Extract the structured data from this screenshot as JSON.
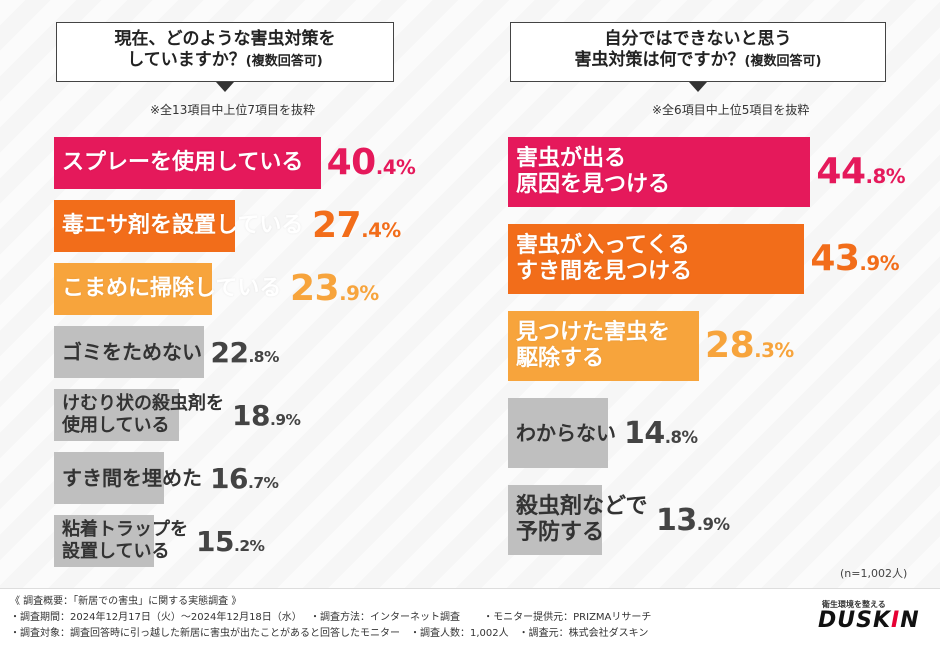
{
  "chart_data": [
    {
      "type": "bar",
      "orientation": "horizontal",
      "title_line1": "現在、どのような害虫対策を",
      "title_line2": "していますか？",
      "title_suffix": "(複数回答可)",
      "note": "※全13項目中上位7項目を抜粋",
      "unit": "%",
      "categories": [
        [
          "スプレーを使用している"
        ],
        [
          "毒エサ剤を設置している"
        ],
        [
          "こまめに掃除している"
        ],
        [
          "ゴミをためない"
        ],
        [
          "けむり状の殺虫剤を",
          "使用している"
        ],
        [
          "すき間を埋めた"
        ],
        [
          "粘着トラップを",
          "設置している"
        ]
      ],
      "values": [
        40.4,
        27.4,
        23.9,
        22.8,
        18.9,
        16.7,
        15.2
      ],
      "value_int": [
        "40",
        "27",
        "23",
        "22",
        "18",
        "16",
        "15"
      ],
      "value_dec": [
        ".4%",
        ".4%",
        ".9%",
        ".8%",
        ".9%",
        ".7%",
        ".2%"
      ],
      "colors": [
        "#e5195b",
        "#f26d1a",
        "#f7a43c",
        "#bfbfbf",
        "#bfbfbf",
        "#bfbfbf",
        "#bfbfbf"
      ],
      "text_colors": [
        "#e5195b",
        "#f26d1a",
        "#f7a43c",
        "#444444",
        "#444444",
        "#444444",
        "#444444"
      ]
    },
    {
      "type": "bar",
      "orientation": "horizontal",
      "title_line1": "自分ではできないと思う",
      "title_line2": "害虫対策は何ですか？",
      "title_suffix": "(複数回答可)",
      "note": "※全6項目中上位5項目を抜粋",
      "unit": "%",
      "categories": [
        [
          "害虫が出る",
          "原因を見つける"
        ],
        [
          "害虫が入ってくる",
          "すき間を見つける"
        ],
        [
          "見つけた害虫を",
          "駆除する"
        ],
        [
          "わからない"
        ],
        [
          "殺虫剤などで",
          "予防する"
        ]
      ],
      "values": [
        44.8,
        43.9,
        28.3,
        14.8,
        13.9
      ],
      "value_int": [
        "44",
        "43",
        "28",
        "14",
        "13"
      ],
      "value_dec": [
        ".8%",
        ".9%",
        ".3%",
        ".8%",
        ".9%"
      ],
      "colors": [
        "#e5195b",
        "#f26d1a",
        "#f7a43c",
        "#bfbfbf",
        "#bfbfbf"
      ],
      "text_colors": [
        "#e5195b",
        "#f26d1a",
        "#f7a43c",
        "#444444",
        "#444444"
      ]
    }
  ],
  "sample_note": "(n=1,002人)",
  "footer": {
    "line1": "《 調査概要：「新居での害虫」に関する実態調査 》",
    "line2": "・調査期間：2024年12月17日（火）～2024年12月18日（水）　 ・調査方法：インターネット調査　　 ・モニター提供元：PRIZMAリサーチ",
    "line3": "・調査対象：調査回答時に引っ越した新居に害虫が出たことがあると回答したモニター　・調査人数：1,002人　・調査元：株式会社ダスキン"
  },
  "logo": {
    "tagline": "衛生環境を整える",
    "name_a": "DUSK",
    "name_b": "I",
    "name_c": "N"
  }
}
